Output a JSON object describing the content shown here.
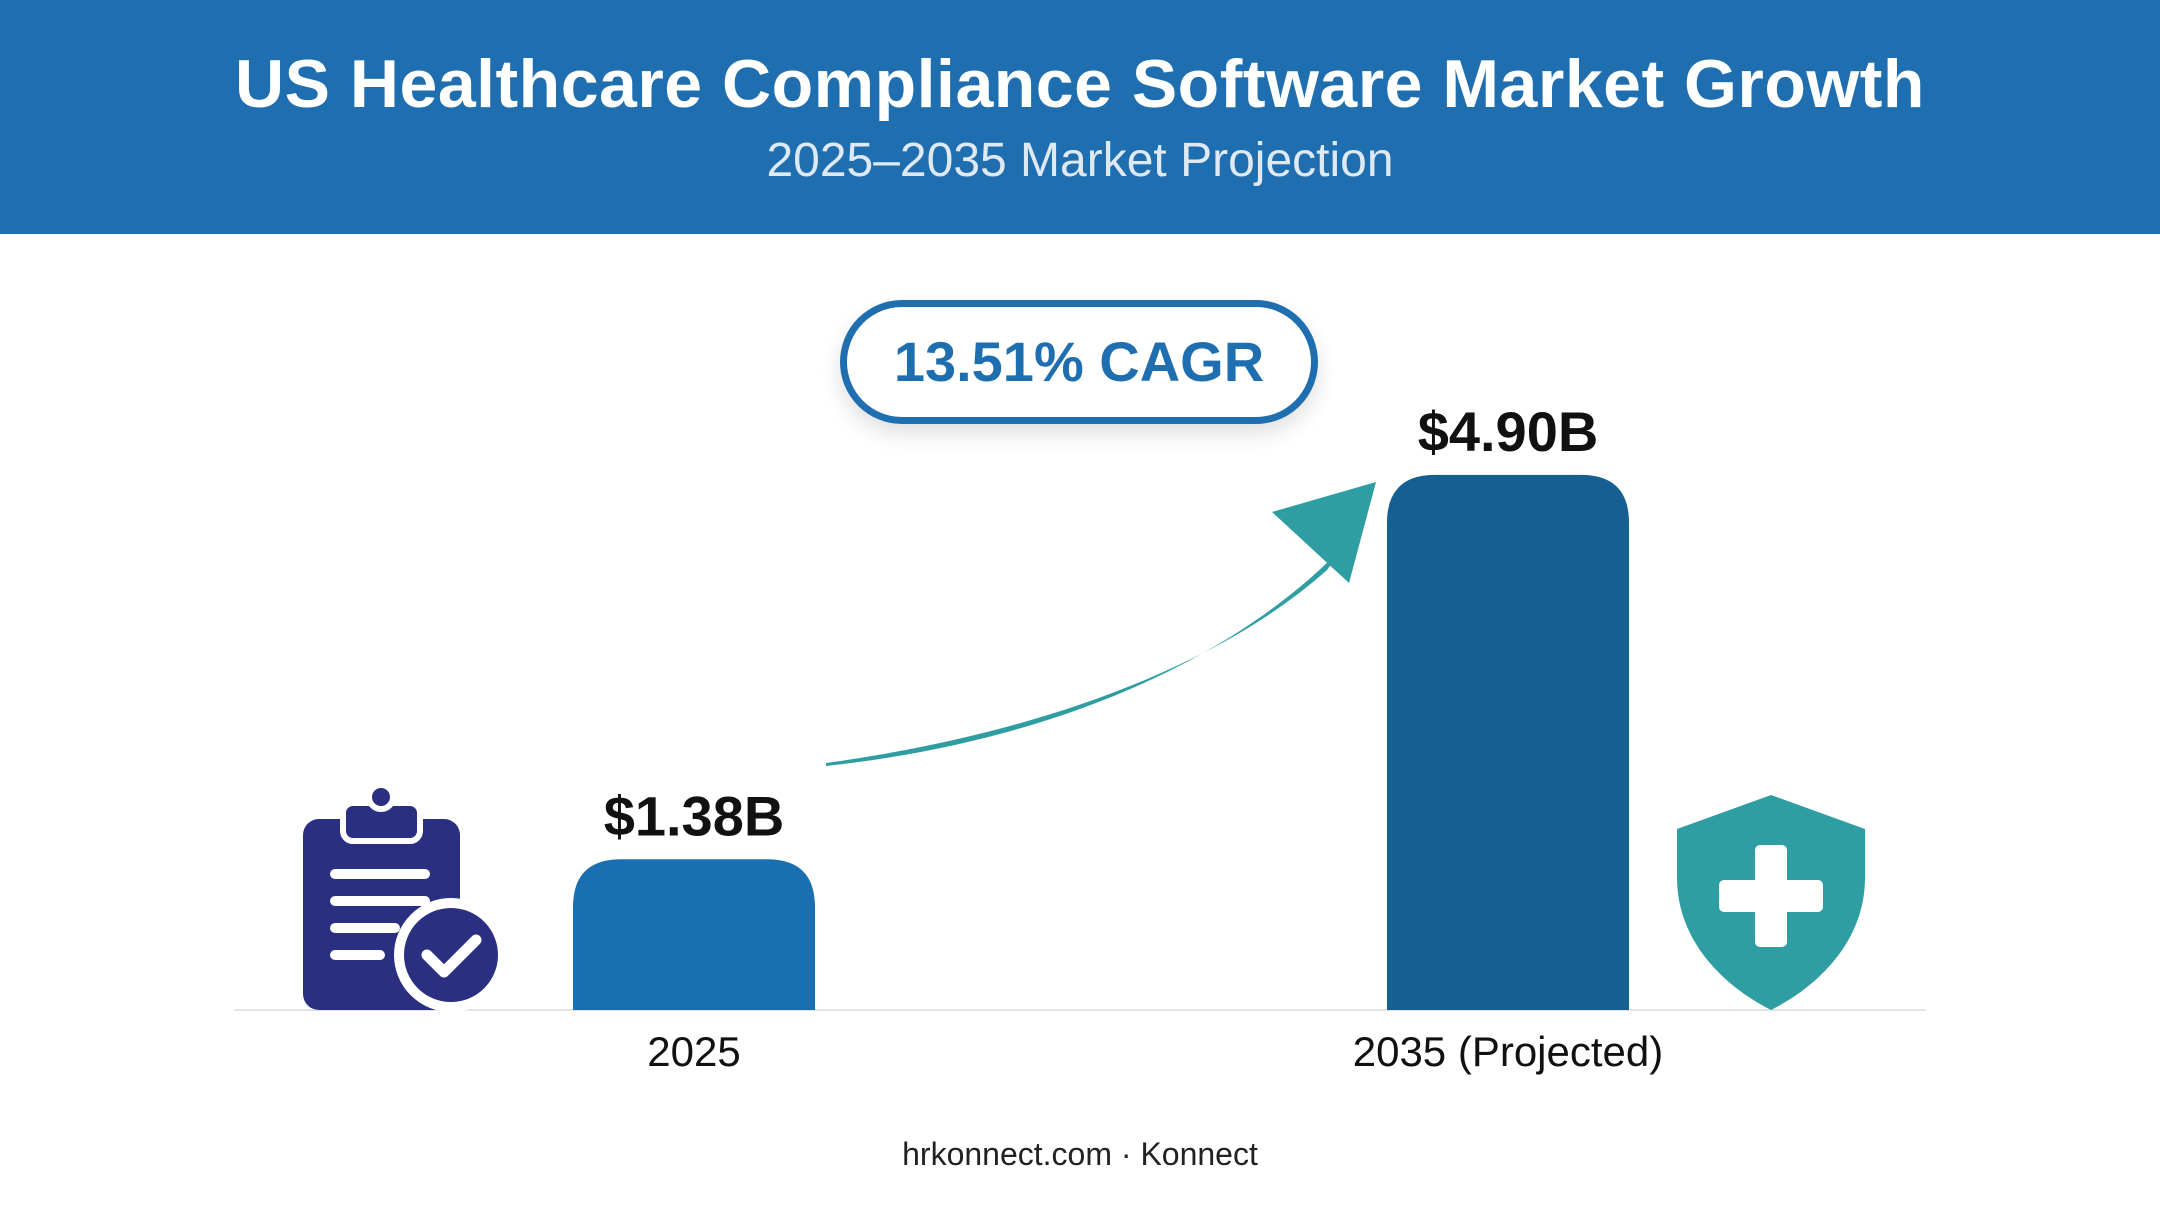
{
  "header": {
    "title": "US Healthcare Compliance Software Market Growth",
    "subtitle": "2025–2035 Market Projection"
  },
  "badge": {
    "label": "13.51% CAGR"
  },
  "colors": {
    "header_bg": "#1f6fb0",
    "bar_2025": "#1a6fb0",
    "bar_2035": "#165f91",
    "arrow": "#2f9ea3",
    "clipboard_icon": "#2b2f82",
    "shield_icon": "#2f9ea3"
  },
  "icons": {
    "left": "clipboard-check-icon",
    "right": "shield-plus-icon",
    "arrow": "growth-arrow-icon"
  },
  "chart_data": {
    "type": "bar",
    "title": "US Healthcare Compliance Software Market Growth",
    "subtitle": "2025–2035 Market Projection",
    "categories": [
      "2025",
      "2035 (Projected)"
    ],
    "values": [
      1.38,
      4.9
    ],
    "value_labels": [
      "$1.38B",
      "$4.90B"
    ],
    "unit": "USD billions",
    "annotation": "13.51% CAGR",
    "xlabel": "",
    "ylabel": "",
    "grid": false,
    "legend": "none"
  },
  "footer": {
    "text": "hrkonnect.com · Konnect"
  }
}
